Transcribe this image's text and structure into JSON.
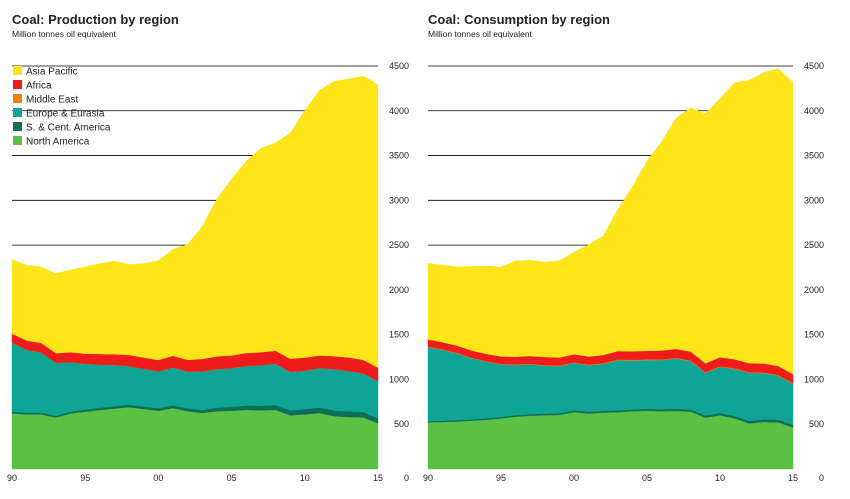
{
  "chart_data": [
    {
      "type": "area",
      "stacked": true,
      "title": "Coal: Production by region",
      "subtitle": "Million tonnes oil equivalent",
      "x": [
        1990,
        1991,
        1992,
        1993,
        1994,
        1995,
        1996,
        1997,
        1998,
        1999,
        2000,
        2001,
        2002,
        2003,
        2004,
        2005,
        2006,
        2007,
        2008,
        2009,
        2010,
        2011,
        2012,
        2013,
        2014,
        2015
      ],
      "x_tick_values": [
        1990,
        1995,
        2000,
        2005,
        2010,
        2015
      ],
      "x_tick_labels": [
        "90",
        "95",
        "00",
        "05",
        "10",
        "15"
      ],
      "y_tick_values": [
        0,
        500,
        1000,
        1500,
        2000,
        2500,
        3000,
        3500,
        4000,
        4500
      ],
      "y_tick_labels": [
        "0",
        "500",
        "1000",
        "1500",
        "2000",
        "2500",
        "3000",
        "3500",
        "4000",
        "4500"
      ],
      "ylim": [
        0,
        4500
      ],
      "legend_position": "top-left",
      "series": [
        {
          "name": "North America",
          "color": "#5ac142",
          "values": [
            620,
            610,
            610,
            575,
            620,
            640,
            660,
            675,
            690,
            670,
            650,
            680,
            645,
            625,
            645,
            650,
            660,
            655,
            660,
            600,
            610,
            625,
            590,
            580,
            575,
            510
          ]
        },
        {
          "name": "S. & Cent. America",
          "color": "#0e6e58",
          "values": [
            20,
            20,
            20,
            20,
            22,
            24,
            25,
            26,
            28,
            28,
            30,
            32,
            33,
            35,
            40,
            45,
            50,
            52,
            55,
            55,
            58,
            62,
            64,
            64,
            62,
            60
          ]
        },
        {
          "name": "Europe & Eurasia",
          "color": "#0fa596",
          "values": [
            770,
            700,
            670,
            590,
            550,
            510,
            480,
            460,
            430,
            420,
            410,
            420,
            410,
            430,
            430,
            430,
            440,
            450,
            460,
            430,
            430,
            440,
            460,
            450,
            430,
            410
          ]
        },
        {
          "name": "Middle East",
          "color": "#f07f14",
          "values": [
            1,
            1,
            1,
            1,
            1,
            1,
            1,
            1,
            1,
            1,
            1,
            1,
            1,
            1,
            1,
            1,
            1,
            1,
            1,
            1,
            1,
            1,
            1,
            1,
            1,
            1
          ]
        },
        {
          "name": "Africa",
          "color": "#ee1c1b",
          "values": [
            100,
            104,
            106,
            108,
            110,
            112,
            118,
            120,
            124,
            126,
            126,
            130,
            130,
            138,
            142,
            142,
            145,
            145,
            145,
            145,
            145,
            140,
            145,
            150,
            150,
            150
          ]
        },
        {
          "name": "Asia Pacific",
          "color": "#fde51a",
          "values": [
            830,
            840,
            850,
            890,
            920,
            970,
            1010,
            1040,
            1010,
            1050,
            1110,
            1190,
            1290,
            1480,
            1760,
            1970,
            2140,
            2280,
            2320,
            2520,
            2760,
            2960,
            3070,
            3110,
            3170,
            3160
          ]
        }
      ]
    },
    {
      "type": "area",
      "stacked": true,
      "title": "Coal: Consumption by region",
      "subtitle": "Million tonnes oil equivalent",
      "x": [
        1990,
        1991,
        1992,
        1993,
        1994,
        1995,
        1996,
        1997,
        1998,
        1999,
        2000,
        2001,
        2002,
        2003,
        2004,
        2005,
        2006,
        2007,
        2008,
        2009,
        2010,
        2011,
        2012,
        2013,
        2014,
        2015
      ],
      "x_tick_values": [
        1990,
        1995,
        2000,
        2005,
        2010,
        2015
      ],
      "x_tick_labels": [
        "90",
        "95",
        "00",
        "05",
        "10",
        "15"
      ],
      "y_tick_values": [
        0,
        500,
        1000,
        1500,
        2000,
        2500,
        3000,
        3500,
        4000,
        4500
      ],
      "y_tick_labels": [
        "0",
        "500",
        "1000",
        "1500",
        "2000",
        "2500",
        "3000",
        "3500",
        "4000",
        "4500"
      ],
      "ylim": [
        0,
        4500
      ],
      "series": [
        {
          "name": "North America",
          "color": "#5ac142",
          "values": [
            520,
            525,
            530,
            540,
            550,
            565,
            585,
            595,
            600,
            605,
            635,
            620,
            630,
            635,
            645,
            650,
            645,
            650,
            640,
            575,
            600,
            565,
            510,
            525,
            520,
            465
          ]
        },
        {
          "name": "S. & Cent. America",
          "color": "#0e6e58",
          "values": [
            15,
            15,
            16,
            16,
            17,
            17,
            17,
            18,
            18,
            18,
            19,
            19,
            19,
            20,
            20,
            21,
            22,
            23,
            23,
            23,
            25,
            27,
            28,
            30,
            31,
            30
          ]
        },
        {
          "name": "Europe & Eurasia",
          "color": "#0fa596",
          "values": [
            825,
            790,
            745,
            680,
            630,
            585,
            560,
            555,
            535,
            525,
            530,
            520,
            525,
            560,
            545,
            545,
            550,
            560,
            540,
            475,
            515,
            525,
            535,
            515,
            490,
            455
          ]
        },
        {
          "name": "Middle East",
          "color": "#f07f14",
          "values": [
            6,
            6,
            6,
            6,
            6,
            6,
            6,
            6,
            7,
            7,
            7,
            7,
            7,
            8,
            8,
            8,
            8,
            8,
            8,
            8,
            8,
            8,
            8,
            8,
            8,
            8
          ]
        },
        {
          "name": "Africa",
          "color": "#ee1c1b",
          "values": [
            80,
            80,
            80,
            80,
            82,
            84,
            86,
            88,
            90,
            90,
            90,
            90,
            92,
            94,
            96,
            96,
            98,
            100,
            100,
            98,
            100,
            100,
            100,
            100,
            100,
            100
          ]
        },
        {
          "name": "Asia Pacific",
          "color": "#fde51a",
          "values": [
            850,
            860,
            880,
            940,
            980,
            1000,
            1070,
            1070,
            1060,
            1080,
            1140,
            1250,
            1330,
            1580,
            1840,
            2120,
            2330,
            2580,
            2720,
            2790,
            2890,
            3090,
            3160,
            3250,
            3320,
            3260
          ]
        }
      ]
    }
  ]
}
